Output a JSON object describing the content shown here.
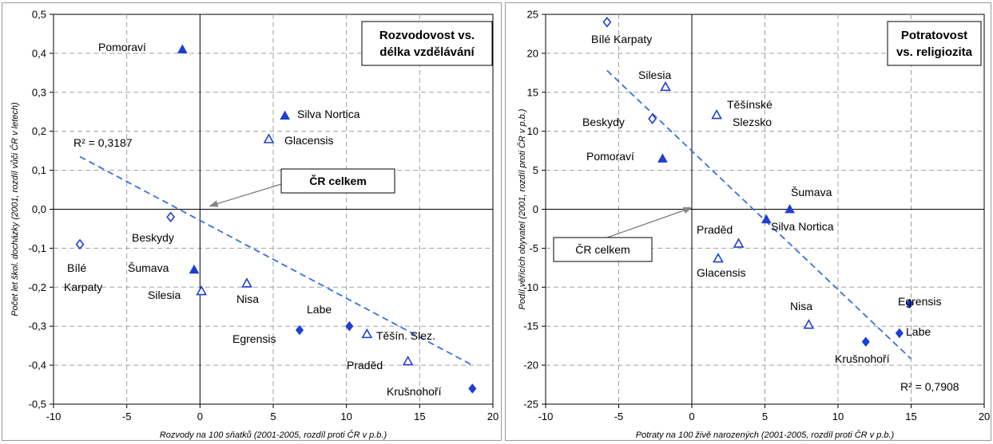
{
  "chart_data": [
    {
      "type": "scatter",
      "title": "Rozvodovost vs. délka vzdělávání",
      "title_lines": [
        "Rozvodovost vs.",
        "délka vzdělávání"
      ],
      "xlabel": "Rozvody na 100 sňatků (2001-2005, rozdíl proti ČR v p.b.)",
      "ylabel": "Počet let škol. docházky (2001, rozdíl vůči ČR v letech)",
      "xlim": [
        -10,
        20
      ],
      "ylim": [
        -0.5,
        0.5
      ],
      "xticks": [
        -10,
        -5,
        0,
        5,
        10,
        15,
        20
      ],
      "xtick_labels": [
        "-10",
        "-5",
        "0",
        "5",
        "10",
        "15",
        "20"
      ],
      "yticks": [
        -0.5,
        -0.4,
        -0.3,
        -0.2,
        -0.1,
        0.0,
        0.1,
        0.2,
        0.3,
        0.4,
        0.5
      ],
      "ytick_labels": [
        "-0,5",
        "-0,4",
        "-0,3",
        "-0,2",
        "-0,1",
        "0,0",
        "0,1",
        "0,2",
        "0,3",
        "0,4",
        "0,5"
      ],
      "grid": true,
      "trendline": {
        "x": [
          -8.2,
          18.6
        ],
        "y": [
          0.135,
          -0.4
        ],
        "r2_label": "R² = 0,3187"
      },
      "annotation": {
        "text": "ČR celkem",
        "target": [
          0,
          0
        ]
      },
      "points": [
        {
          "name": "Pomoraví",
          "x": -1.2,
          "y": 0.41,
          "marker": "triangle-filled"
        },
        {
          "name": "Silva Nortica",
          "x": 5.8,
          "y": 0.24,
          "marker": "triangle-filled"
        },
        {
          "name": "Glacensis",
          "x": 4.7,
          "y": 0.18,
          "marker": "triangle-open"
        },
        {
          "name": "Beskydy",
          "x": -2.0,
          "y": -0.02,
          "marker": "diamond-open"
        },
        {
          "name": "Bílé Karpaty",
          "x": -8.2,
          "y": -0.09,
          "marker": "diamond-open"
        },
        {
          "name": "Šumava",
          "x": -0.4,
          "y": -0.155,
          "marker": "triangle-filled"
        },
        {
          "name": "Silesia",
          "x": 0.1,
          "y": -0.21,
          "marker": "triangle-open"
        },
        {
          "name": "Nisa",
          "x": 3.2,
          "y": -0.19,
          "marker": "triangle-open"
        },
        {
          "name": "Labe",
          "x": 10.2,
          "y": -0.3,
          "marker": "diamond-filled"
        },
        {
          "name": "Egrensis",
          "x": 6.8,
          "y": -0.31,
          "marker": "diamond-filled"
        },
        {
          "name": "Těšín. Slez.",
          "x": 11.4,
          "y": -0.32,
          "marker": "triangle-open"
        },
        {
          "name": "Praděd",
          "x": 14.2,
          "y": -0.39,
          "marker": "triangle-open"
        },
        {
          "name": "Krušnohoří",
          "x": 18.6,
          "y": -0.46,
          "marker": "diamond-filled"
        }
      ],
      "colors": {
        "marker": "#1f3fd1",
        "trend": "#3a6fe0",
        "grid": "#a0a0a0"
      }
    },
    {
      "type": "scatter",
      "title": "Potratovost vs. religiozita",
      "title_lines": [
        "Potratovost",
        "vs. religiozita"
      ],
      "xlabel": "Potraty na 100 živě narozených (2001-2005, rozdíl proti ČR v p.b.)",
      "ylabel": "Podíl věřících obyvatel (2001, rozdíl proti ČR v p.b.)",
      "xlim": [
        -10,
        20
      ],
      "ylim": [
        -25,
        25
      ],
      "xticks": [
        -10,
        -5,
        0,
        5,
        10,
        15,
        20
      ],
      "xtick_labels": [
        "-10",
        "-5",
        "0",
        "5",
        "10",
        "15",
        "20"
      ],
      "yticks": [
        -25,
        -20,
        -15,
        -10,
        -5,
        0,
        5,
        10,
        15,
        20,
        25
      ],
      "ytick_labels": [
        "-25",
        "-20",
        "-15",
        "-10",
        "-5",
        "0",
        "5",
        "10",
        "15",
        "20",
        "25"
      ],
      "grid": true,
      "trendline": {
        "x": [
          -5.8,
          15.0
        ],
        "y": [
          17.8,
          -19.2
        ],
        "r2_label": "R² = 0,7908"
      },
      "annotation": {
        "text": "ČR celkem",
        "target": [
          0,
          0
        ]
      },
      "points": [
        {
          "name": "Bílé Karpaty",
          "x": -5.8,
          "y": 24.0,
          "marker": "diamond-open"
        },
        {
          "name": "Silesia",
          "x": -1.8,
          "y": 15.7,
          "marker": "triangle-open"
        },
        {
          "name": "Beskydy",
          "x": -2.7,
          "y": 11.6,
          "marker": "diamond-open"
        },
        {
          "name": "Těšínské Slezsko",
          "label_lines": [
            "Těšínské",
            "Slezsko"
          ],
          "x": 1.7,
          "y": 12.1,
          "marker": "triangle-open"
        },
        {
          "name": "Pomoraví",
          "x": -2.0,
          "y": 6.5,
          "marker": "triangle-filled"
        },
        {
          "name": "Šumava",
          "x": 6.7,
          "y": 0.0,
          "marker": "triangle-filled"
        },
        {
          "name": "Silva Nortica",
          "x": 5.1,
          "y": -1.3,
          "marker": "triangle-filled"
        },
        {
          "name": "Praděd",
          "x": 3.2,
          "y": -4.4,
          "marker": "triangle-open"
        },
        {
          "name": "Glacensis",
          "x": 1.8,
          "y": -6.3,
          "marker": "triangle-open"
        },
        {
          "name": "Nisa",
          "x": 8.0,
          "y": -14.8,
          "marker": "triangle-open"
        },
        {
          "name": "Egrensis",
          "x": 14.9,
          "y": -12.1,
          "marker": "diamond-filled"
        },
        {
          "name": "Labe",
          "x": 14.2,
          "y": -15.9,
          "marker": "diamond-filled"
        },
        {
          "name": "Krušnohoří",
          "x": 11.9,
          "y": -17.0,
          "marker": "diamond-filled"
        }
      ],
      "colors": {
        "marker": "#1f3fd1",
        "trend": "#3a6fe0",
        "grid": "#a0a0a0"
      }
    }
  ]
}
